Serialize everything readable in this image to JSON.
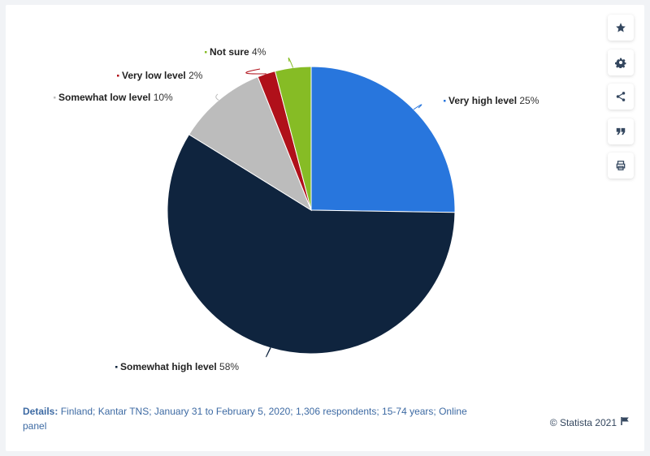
{
  "chart_data": {
    "type": "pie",
    "start_angle_deg": 0,
    "slices": [
      {
        "label": "Very high level",
        "value": 25,
        "color": "#2876dd"
      },
      {
        "label": "Somewhat high level",
        "value": 58,
        "color": "#0f243e"
      },
      {
        "label": "Somewhat low level",
        "value": 10,
        "color": "#bcbcbc"
      },
      {
        "label": "Very low level",
        "value": 2,
        "color": "#b0101a"
      },
      {
        "label": "Not sure",
        "value": 4,
        "color": "#86bc25"
      }
    ],
    "value_suffix": "%"
  },
  "toolbar": {
    "buttons": [
      {
        "name": "favorite-star-icon"
      },
      {
        "name": "settings-gear-icon"
      },
      {
        "name": "share-icon"
      },
      {
        "name": "cite-quote-icon"
      },
      {
        "name": "print-icon"
      }
    ]
  },
  "footer": {
    "details_label": "Details:",
    "details_text": "Finland; Kantar TNS; January 31 to February 5, 2020; 1,306 respondents; 15-74 years; Online panel",
    "copyright": "© Statista 2021"
  }
}
